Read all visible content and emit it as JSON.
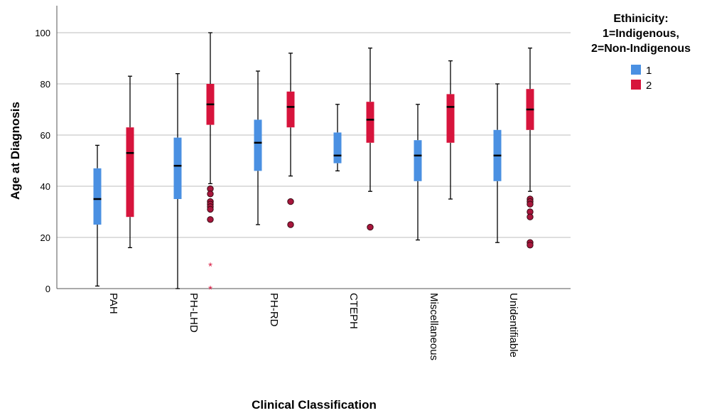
{
  "chart_data": {
    "type": "boxplot",
    "xlabel": "Clinical Classification",
    "ylabel": "Age at Diagnosis",
    "ylim": [
      0,
      100
    ],
    "yticks": [
      0,
      20,
      40,
      60,
      80,
      100
    ],
    "grid": "horizontal",
    "categories": [
      "PAH",
      "PH-LHD",
      "PH-RD",
      "CTEPH",
      "Miscellaneous",
      "Unidentifiable"
    ],
    "legend": {
      "title_lines": [
        "Ethinicity:",
        "1=Indigenous,",
        "2=Non-Indigenous"
      ],
      "placement": "top-right"
    },
    "series": [
      {
        "name": "1",
        "color": "#4a90e2",
        "boxes": [
          {
            "min": 1,
            "q1": 25,
            "median": 35,
            "q3": 47,
            "max": 56,
            "outliers": [],
            "extremes": []
          },
          {
            "min": 0,
            "q1": 35,
            "median": 48,
            "q3": 59,
            "max": 84,
            "outliers": [],
            "extremes": []
          },
          {
            "min": 25,
            "q1": 46,
            "median": 57,
            "q3": 66,
            "max": 85,
            "outliers": [],
            "extremes": []
          },
          {
            "min": 46,
            "q1": 49,
            "median": 52,
            "q3": 61,
            "max": 72,
            "outliers": [],
            "extremes": []
          },
          {
            "min": 19,
            "q1": 42,
            "median": 52,
            "q3": 58,
            "max": 72,
            "outliers": [],
            "extremes": []
          },
          {
            "min": 18,
            "q1": 42,
            "median": 52,
            "q3": 62,
            "max": 80,
            "outliers": [],
            "extremes": []
          }
        ]
      },
      {
        "name": "2",
        "color": "#d7143c",
        "boxes": [
          {
            "min": 16,
            "q1": 28,
            "median": 53,
            "q3": 63,
            "max": 83,
            "outliers": [],
            "extremes": []
          },
          {
            "min": 41,
            "q1": 64,
            "median": 72,
            "q3": 80,
            "max": 100,
            "outliers": [
              39,
              37,
              34,
              33,
              32,
              31,
              27
            ],
            "extremes": [
              9,
              0
            ]
          },
          {
            "min": 44,
            "q1": 63,
            "median": 71,
            "q3": 77,
            "max": 92,
            "outliers": [
              34,
              25
            ],
            "extremes": []
          },
          {
            "min": 38,
            "q1": 57,
            "median": 66,
            "q3": 73,
            "max": 94,
            "outliers": [
              24
            ],
            "extremes": []
          },
          {
            "min": 35,
            "q1": 57,
            "median": 71,
            "q3": 76,
            "max": 89,
            "outliers": [],
            "extremes": []
          },
          {
            "min": 38,
            "q1": 62,
            "median": 70,
            "q3": 78,
            "max": 94,
            "outliers": [
              35,
              34,
              33,
              30,
              28,
              18,
              17
            ],
            "extremes": []
          }
        ]
      }
    ]
  }
}
